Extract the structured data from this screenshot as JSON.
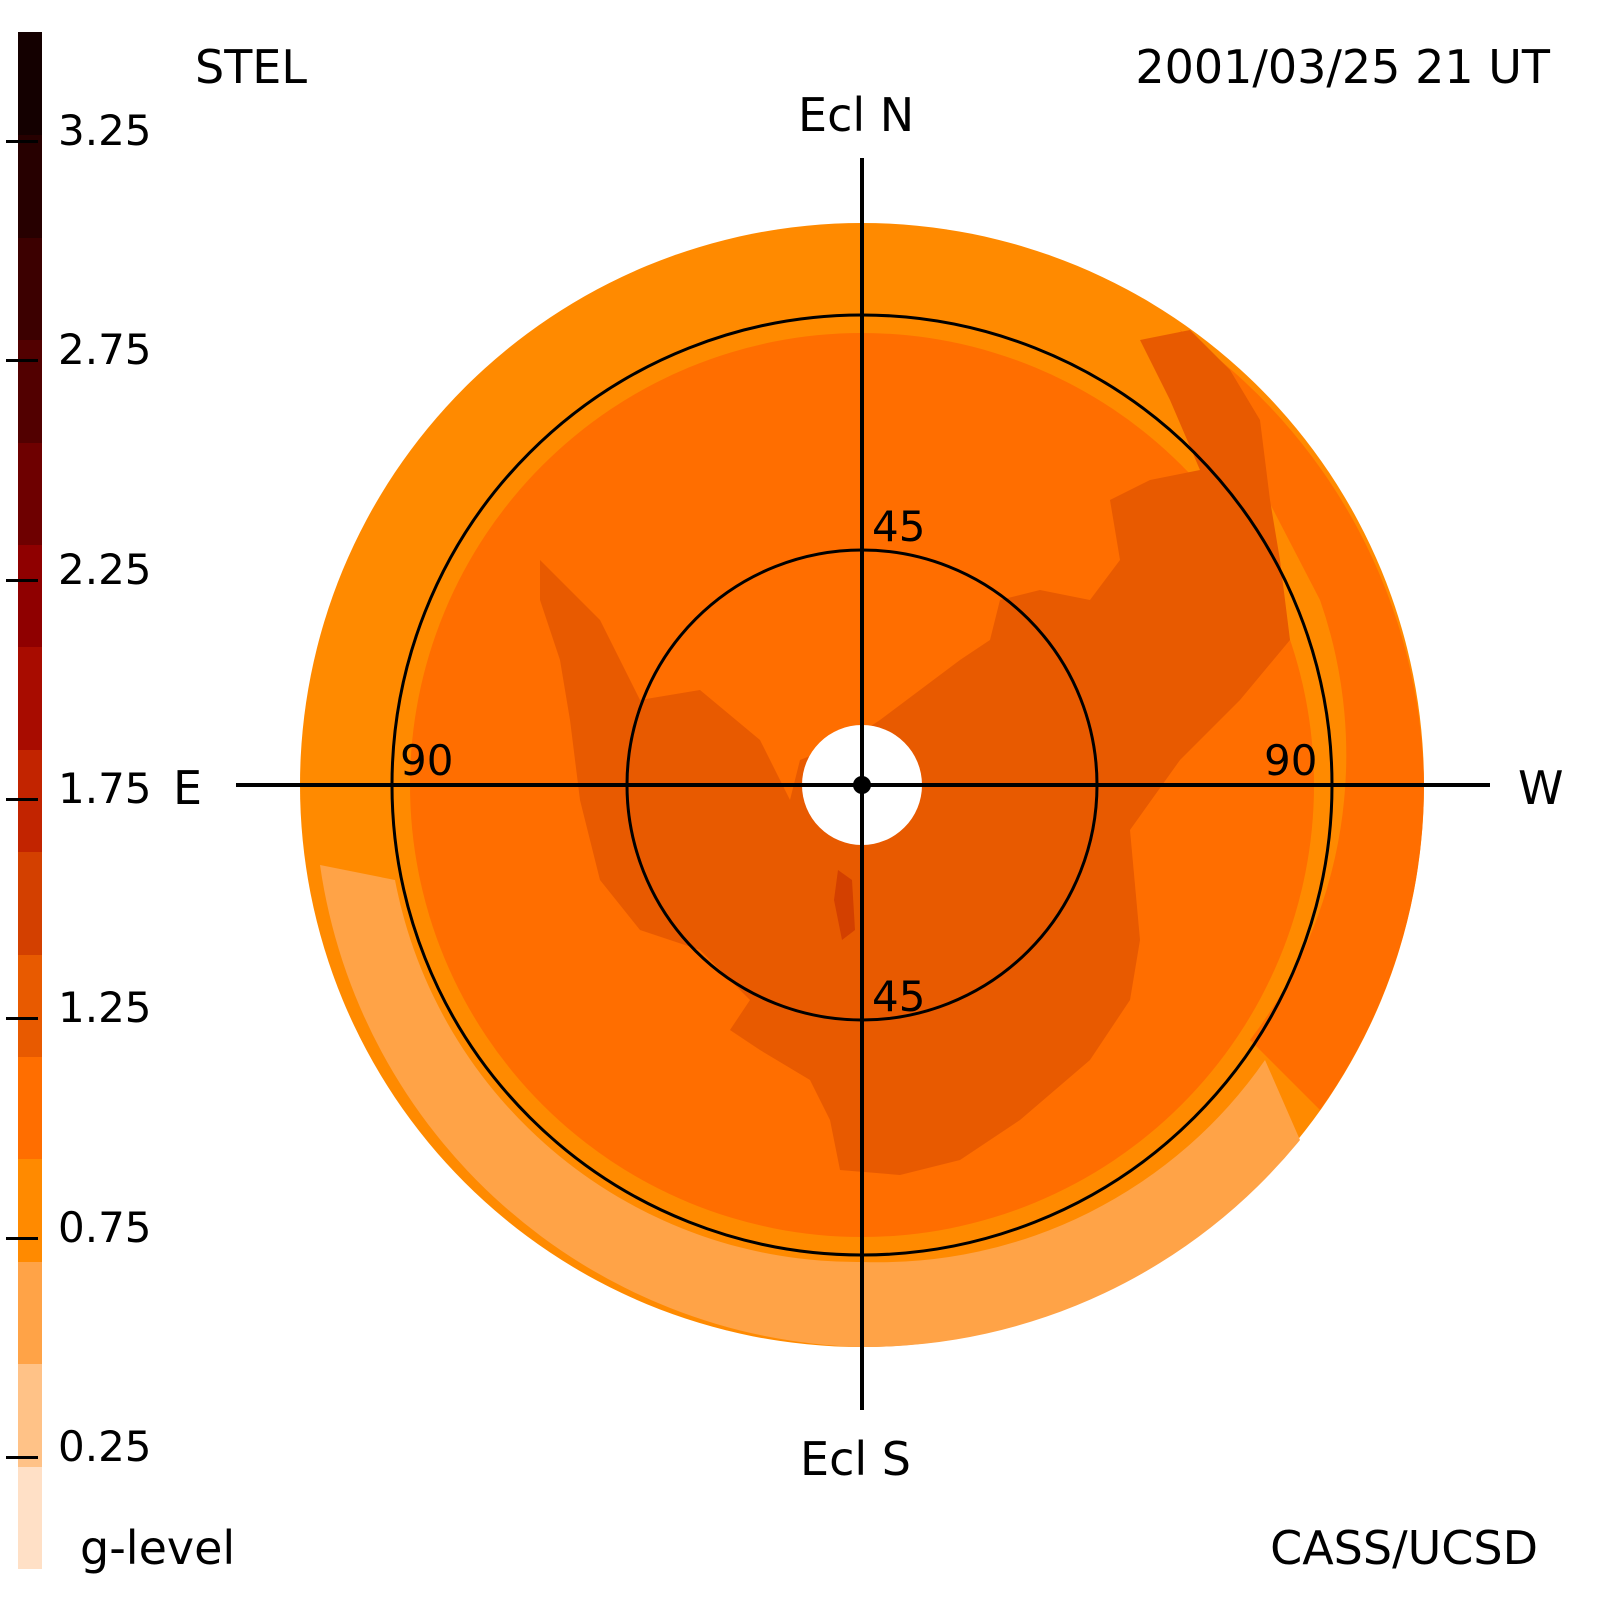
{
  "header": {
    "instrument": "STEL",
    "timestamp": "2001/03/25 21 UT"
  },
  "footer": {
    "colorbar_label": "g-level",
    "credit": "CASS/UCSD"
  },
  "compass": {
    "north": "Ecl N",
    "south": "Ecl S",
    "east": "E",
    "west": "W"
  },
  "rings": {
    "inner_top": "45",
    "inner_bottom": "45",
    "outer_left": "90",
    "outer_right": "90"
  },
  "colorbar": {
    "ticks": [
      "3.25",
      "2.75",
      "2.25",
      "1.75",
      "1.25",
      "0.75",
      "0.25"
    ],
    "colors": [
      "#ffe0c6",
      "#ffc287",
      "#ffa347",
      "#ff8a00",
      "#ff6e00",
      "#e85a00",
      "#d34000",
      "#c22400",
      "#a80c00",
      "#8f0000",
      "#6e0000",
      "#520000",
      "#3c0000",
      "#270000",
      "#140000"
    ],
    "range": [
      0,
      3.5
    ]
  },
  "map_colors": {
    "background": "#ffffff",
    "level_025": "#ffa347",
    "level_050": "#ff8a00",
    "level_075": "#ff6e00",
    "level_100": "#e85a00",
    "level_125": "#d34000",
    "grid": "#000000",
    "sun": "#ffffff"
  }
}
